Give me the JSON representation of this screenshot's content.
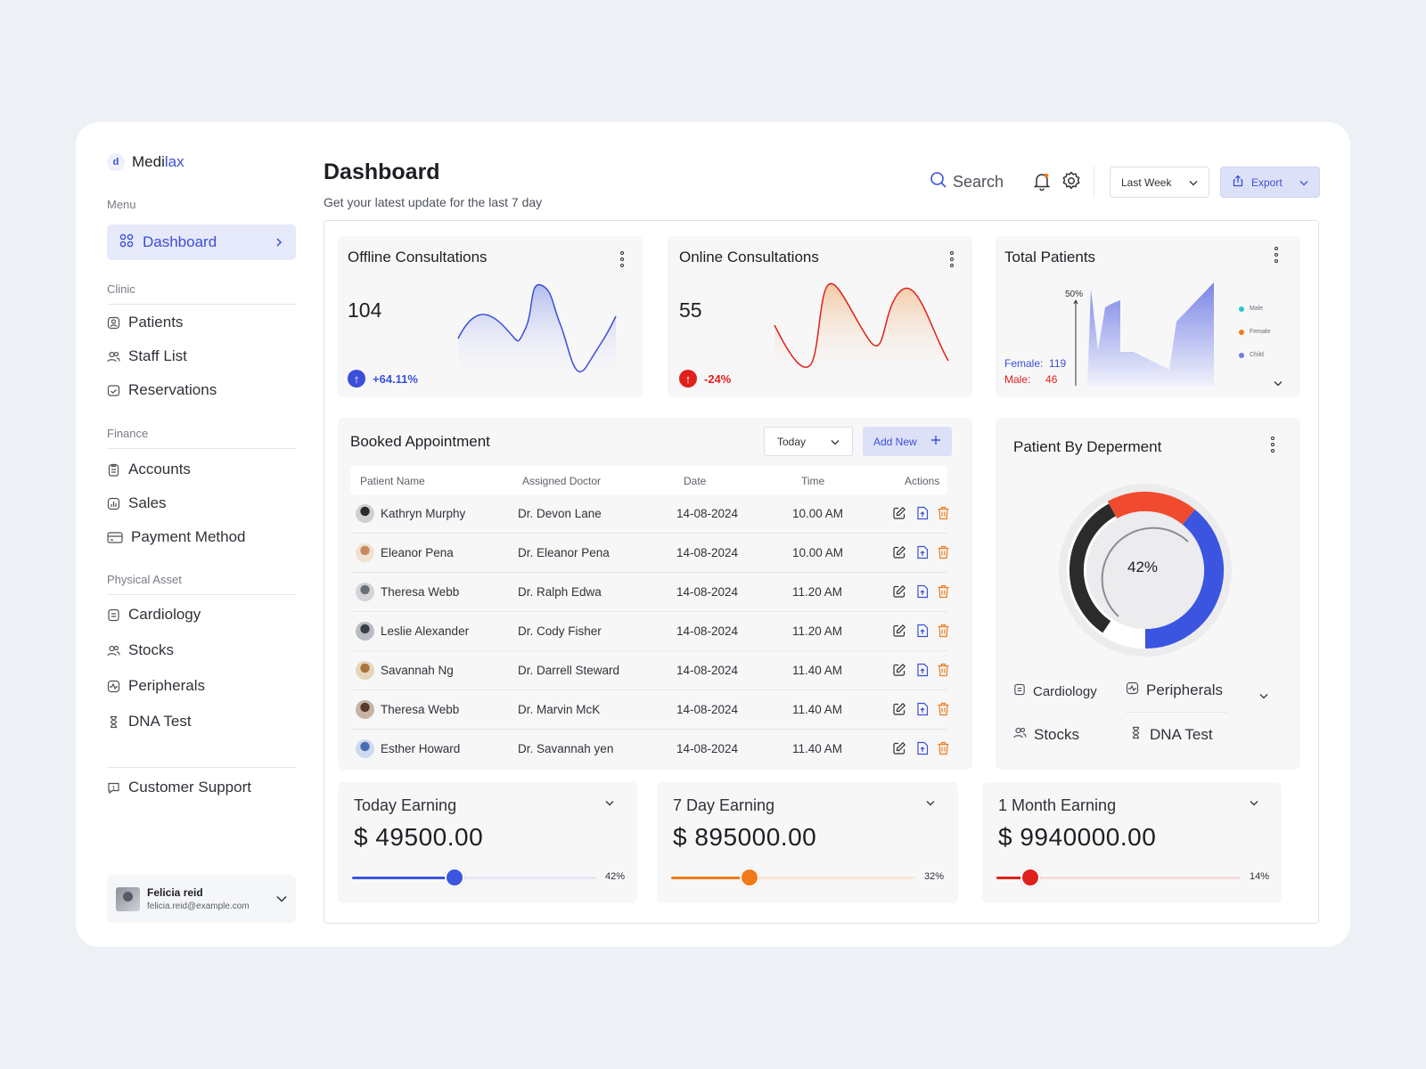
{
  "app": {
    "logo_prefix": "Medi",
    "logo_suffix": "lax"
  },
  "sidebar": {
    "menu_label": "Menu",
    "active_item": "Dashboard",
    "clinic_label": "Clinic",
    "clinic_items": [
      "Patients",
      "Staff List",
      "Reservations"
    ],
    "finance_label": "Finance",
    "finance_items": [
      "Accounts",
      "Sales",
      "Payment Method"
    ],
    "asset_label": "Physical Asset",
    "asset_items": [
      "Cardiology",
      "Stocks",
      "Peripherals",
      "DNA Test"
    ],
    "support": "Customer Support",
    "user": {
      "name": "Felicia reid",
      "email": "felicia.reid@example.com"
    }
  },
  "header": {
    "title": "Dashboard",
    "subtitle": "Get your latest update for the last 7 day",
    "search_label": "Search",
    "period": "Last Week",
    "export_label": "Export"
  },
  "offline": {
    "title": "Offline Consultations",
    "value": "104",
    "delta": "+64.11%",
    "color": "#3b4fd8"
  },
  "online": {
    "title": "Online Consultations",
    "value": "55",
    "delta": "-24%",
    "color": "#e0201b"
  },
  "patients": {
    "title": "Total Patients",
    "axis_label": "50%",
    "female_label": "Female:",
    "female_value": "119",
    "male_label": "Male:",
    "male_value": "46",
    "legend": [
      "Male",
      "Female",
      "Child"
    ],
    "legend_colors": [
      "#2fc6c6",
      "#f07a1a",
      "#6b7be8"
    ]
  },
  "appointments": {
    "title": "Booked Appointment",
    "filter": "Today",
    "add_label": "Add New",
    "columns": [
      "Patient Name",
      "Assigned Doctor",
      "Date",
      "Time",
      "Actions"
    ],
    "rows": [
      {
        "patient": "Kathryn Murphy",
        "doctor": "Dr. Devon Lane",
        "date": "14-08-2024",
        "time": "10.00 AM"
      },
      {
        "patient": "Eleanor Pena",
        "doctor": "Dr. Eleanor Pena",
        "date": "14-08-2024",
        "time": "10.00 AM"
      },
      {
        "patient": "Theresa Webb",
        "doctor": "Dr. Ralph Edwa",
        "date": "14-08-2024",
        "time": "11.20 AM"
      },
      {
        "patient": "Leslie Alexander",
        "doctor": "Dr. Cody Fisher",
        "date": "14-08-2024",
        "time": "11.20 AM"
      },
      {
        "patient": "Savannah Ng",
        "doctor": "Dr. Darrell Steward",
        "date": "14-08-2024",
        "time": "11.40 AM"
      },
      {
        "patient": "Theresa Webb",
        "doctor": "Dr. Marvin McK",
        "date": "14-08-2024",
        "time": "11.40 AM"
      },
      {
        "patient": "Esther Howard",
        "doctor": "Dr. Savannah yen",
        "date": "14-08-2024",
        "time": "11.40 AM"
      }
    ]
  },
  "department": {
    "title": "Patient By Deperment",
    "center": "42%",
    "items": [
      "Cardiology",
      "Peripherals",
      "Stocks",
      "DNA Test"
    ],
    "segment_colors": [
      "#f04a2f",
      "#3b55e0",
      "#2b2b2b"
    ]
  },
  "earnings": [
    {
      "title": "Today Earning",
      "value": "$ 49500.00",
      "pct_label": "42%",
      "pct": 42,
      "color": "#3b55e0",
      "track": "#e3e6f6"
    },
    {
      "title": "7 Day Earning",
      "value": "$ 895000.00",
      "pct_label": "32%",
      "pct": 32,
      "color": "#f07a1a",
      "track": "#f9e7d8"
    },
    {
      "title": "1 Month Earning",
      "value": "$ 9940000.00",
      "pct_label": "14%",
      "pct": 14,
      "color": "#e0201b",
      "track": "#f8dcdc"
    }
  ]
}
